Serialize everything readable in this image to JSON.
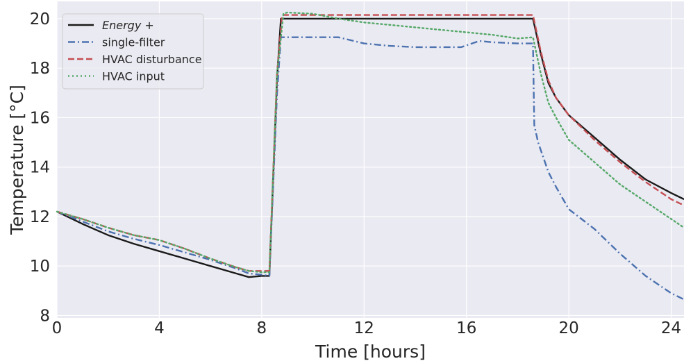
{
  "chart_data": {
    "type": "line",
    "title": "",
    "xlabel": "Time [hours]",
    "ylabel": "Temperature [°C]",
    "xlim": [
      0,
      24.5
    ],
    "ylim": [
      7.9,
      20.7
    ],
    "xticks": [
      0,
      4,
      8,
      12,
      16,
      20,
      24
    ],
    "yticks": [
      8,
      10,
      12,
      14,
      16,
      18,
      20
    ],
    "grid": true,
    "legend_position": "top-left",
    "background_color": "#eaeaf2",
    "series": [
      {
        "name": "Energy +",
        "color": "#1a1a1a",
        "style": "solid",
        "italic": true,
        "x": [
          0,
          1,
          2,
          3,
          4,
          5,
          6,
          7,
          7.5,
          8,
          8.3,
          8.6,
          8.75,
          9,
          10,
          12,
          14,
          16,
          18,
          18.6,
          18.9,
          19.2,
          19.5,
          20,
          21,
          22,
          23,
          24,
          24.5
        ],
        "y": [
          12.2,
          11.7,
          11.25,
          10.9,
          10.6,
          10.3,
          10.0,
          9.7,
          9.55,
          9.6,
          9.6,
          17.6,
          20.0,
          20.0,
          20.0,
          20.0,
          20.0,
          20.0,
          20.0,
          20.0,
          18.6,
          17.4,
          16.8,
          16.1,
          15.2,
          14.3,
          13.5,
          12.95,
          12.7
        ]
      },
      {
        "name": "single-filter",
        "color": "#4c72b0",
        "style": "dashdot",
        "x": [
          0,
          1,
          2,
          3,
          4,
          5,
          6,
          7,
          7.5,
          8,
          8.3,
          8.6,
          8.75,
          9,
          10,
          11,
          12,
          13,
          14,
          15,
          15.8,
          16.5,
          17,
          18,
          18.6,
          18.65,
          18.8,
          19.2,
          19.5,
          20,
          21,
          22,
          23,
          24,
          24.5
        ],
        "y": [
          12.2,
          11.8,
          11.4,
          11.1,
          10.85,
          10.55,
          10.25,
          9.9,
          9.7,
          9.65,
          9.6,
          17.0,
          19.25,
          19.25,
          19.25,
          19.25,
          19.0,
          18.9,
          18.85,
          18.85,
          18.85,
          19.1,
          19.05,
          19.0,
          19.0,
          15.7,
          15.0,
          13.8,
          13.2,
          12.3,
          11.5,
          10.5,
          9.6,
          8.9,
          8.65
        ]
      },
      {
        "name": "HVAC disturbance",
        "color": "#c44e52",
        "style": "dashed",
        "x": [
          0,
          1,
          2,
          3,
          4,
          5,
          6,
          7,
          7.5,
          8,
          8.3,
          8.6,
          8.8,
          9,
          10,
          12,
          14,
          16,
          18,
          18.6,
          18.9,
          19.2,
          19.5,
          20,
          21,
          22,
          23,
          24,
          24.5
        ],
        "y": [
          12.2,
          11.9,
          11.55,
          11.25,
          11.05,
          10.7,
          10.3,
          9.95,
          9.8,
          9.8,
          9.8,
          17.8,
          20.15,
          20.15,
          20.15,
          20.15,
          20.15,
          20.15,
          20.15,
          20.15,
          18.7,
          17.5,
          16.8,
          16.1,
          15.1,
          14.2,
          13.4,
          12.7,
          12.45
        ]
      },
      {
        "name": "HVAC input",
        "color": "#55a868",
        "style": "dotted",
        "x": [
          0,
          1,
          2,
          3,
          4,
          5,
          6,
          7,
          7.5,
          8,
          8.3,
          8.6,
          8.85,
          9,
          10,
          11,
          12,
          13,
          14,
          15,
          16,
          17,
          18,
          18.6,
          18.9,
          19.2,
          19.5,
          20,
          21,
          22,
          23,
          24,
          24.5
        ],
        "y": [
          12.2,
          11.9,
          11.55,
          11.25,
          11.05,
          10.7,
          10.3,
          9.95,
          9.8,
          9.75,
          9.75,
          17.8,
          20.2,
          20.25,
          20.2,
          20.0,
          19.85,
          19.75,
          19.65,
          19.55,
          19.45,
          19.35,
          19.2,
          19.25,
          17.8,
          16.6,
          16.0,
          15.1,
          14.2,
          13.3,
          12.6,
          11.9,
          11.55
        ]
      }
    ]
  }
}
